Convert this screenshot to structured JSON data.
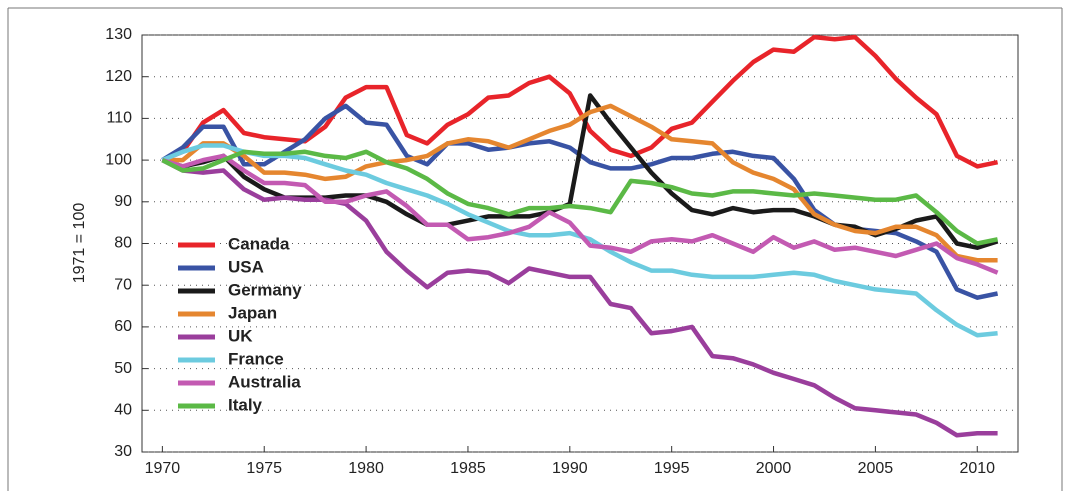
{
  "chart_data": {
    "type": "line",
    "ylabel": "1971 = 100",
    "x": [
      1970,
      1971,
      1972,
      1973,
      1974,
      1975,
      1976,
      1977,
      1978,
      1979,
      1980,
      1981,
      1982,
      1983,
      1984,
      1985,
      1986,
      1987,
      1988,
      1989,
      1990,
      1991,
      1992,
      1993,
      1994,
      1995,
      1996,
      1997,
      1998,
      1999,
      2000,
      2001,
      2002,
      2003,
      2004,
      2005,
      2006,
      2007,
      2008,
      2009,
      2010,
      2011
    ],
    "xlim": [
      1969,
      2012
    ],
    "xticks": [
      1970,
      1975,
      1980,
      1985,
      1990,
      1995,
      2000,
      2005,
      2010
    ],
    "ylim": [
      30,
      130
    ],
    "yticks": [
      30,
      40,
      50,
      60,
      70,
      80,
      90,
      100,
      110,
      120,
      130
    ],
    "grid": true,
    "legend": "left",
    "series": [
      {
        "name": "Canada",
        "color": "#e8242a",
        "values": [
          100,
          102,
          109,
          112,
          106.5,
          105.5,
          105,
          104.5,
          108,
          115,
          117.5,
          117.5,
          106,
          104,
          108.5,
          111,
          115,
          115.5,
          118.5,
          120,
          116,
          107,
          102.5,
          101,
          103,
          107.5,
          109,
          114,
          119,
          123.5,
          126.5,
          126,
          129.5,
          129,
          129.5,
          125,
          119.5,
          115,
          111,
          101,
          98.5,
          99.5
        ]
      },
      {
        "name": "USA",
        "color": "#3953a4",
        "values": [
          100,
          103,
          108,
          108,
          99,
          99,
          102,
          105,
          110,
          113,
          109,
          108.5,
          101,
          99,
          104,
          104,
          102.5,
          103,
          104,
          104.5,
          103,
          99.5,
          98,
          98,
          99,
          100.5,
          100.5,
          101.5,
          102,
          101,
          100.5,
          95.5,
          88,
          84.5,
          83.5,
          83,
          82.5,
          80.5,
          78,
          69,
          67,
          68
        ]
      },
      {
        "name": "Germany",
        "color": "#1a1a1a",
        "values": [
          100,
          98.5,
          99.5,
          101,
          96,
          93,
          91,
          91,
          91,
          91.5,
          91.5,
          90,
          87,
          84.5,
          84.5,
          85.5,
          86.5,
          86.5,
          86.5,
          87.5,
          89.5,
          115.5,
          109,
          103,
          97,
          92,
          88,
          87,
          88.5,
          87.5,
          88,
          88,
          86.5,
          84.5,
          84,
          82,
          83.5,
          85.5,
          86.5,
          80,
          79,
          80.5
        ]
      },
      {
        "name": "Japan",
        "color": "#e5862f",
        "values": [
          100,
          100,
          104,
          104,
          101,
          97,
          97,
          96.5,
          95.5,
          96,
          98.5,
          99.5,
          100,
          101,
          104,
          105,
          104.5,
          103,
          105,
          107,
          108.5,
          111.5,
          113,
          110.5,
          108,
          105,
          104.5,
          104,
          99.5,
          97,
          95.5,
          93,
          87,
          84.5,
          83,
          82.5,
          84,
          84,
          82,
          77,
          76,
          76
        ]
      },
      {
        "name": "UK",
        "color": "#9a3e9c",
        "values": [
          100,
          97.5,
          97,
          97.5,
          93,
          90.5,
          91,
          90.5,
          90.5,
          89.5,
          85.5,
          78,
          73.5,
          69.5,
          73,
          73.5,
          73,
          70.5,
          74,
          73,
          72,
          72,
          65.5,
          64.5,
          58.5,
          59,
          60,
          53,
          52.5,
          51,
          49,
          47.5,
          46,
          43,
          40.5,
          40,
          39.5,
          39,
          37,
          34,
          34.5,
          34.5
        ]
      },
      {
        "name": "France",
        "color": "#6ccbdf",
        "values": [
          100,
          102,
          103.5,
          103.5,
          102,
          101,
          101,
          100.5,
          99,
          97.5,
          96.5,
          94.5,
          93,
          91.5,
          89.5,
          87,
          85,
          83,
          82,
          82,
          82.5,
          81,
          78,
          75.5,
          73.5,
          73.5,
          72.5,
          72,
          72,
          72,
          72.5,
          73,
          72.5,
          71,
          70,
          69,
          68.5,
          68,
          64,
          60.5,
          58,
          58.5
        ]
      },
      {
        "name": "Australia",
        "color": "#c35ab2",
        "values": [
          100,
          98.5,
          100,
          101,
          97.5,
          94.5,
          94.5,
          94,
          90,
          90,
          91.5,
          92.5,
          89,
          84.5,
          84.5,
          81,
          81.5,
          82.5,
          84,
          87.5,
          85,
          79.5,
          79,
          78,
          80.5,
          81,
          80.5,
          82,
          80,
          78,
          81.5,
          79,
          80.5,
          78.5,
          79,
          78,
          77,
          78.5,
          80,
          76.5,
          75,
          73
        ]
      },
      {
        "name": "Italy",
        "color": "#5bb946",
        "values": [
          100,
          97.5,
          98,
          100,
          102,
          101.5,
          101.5,
          102,
          101,
          100.5,
          102,
          99.5,
          98,
          95.5,
          92,
          89.5,
          88.5,
          87,
          88.5,
          88.5,
          89,
          88.5,
          87.5,
          95,
          94.5,
          93.5,
          92,
          91.5,
          92.5,
          92.5,
          92,
          91.5,
          92,
          91.5,
          91,
          90.5,
          90.5,
          91.5,
          87.5,
          83,
          80,
          81
        ]
      }
    ]
  }
}
